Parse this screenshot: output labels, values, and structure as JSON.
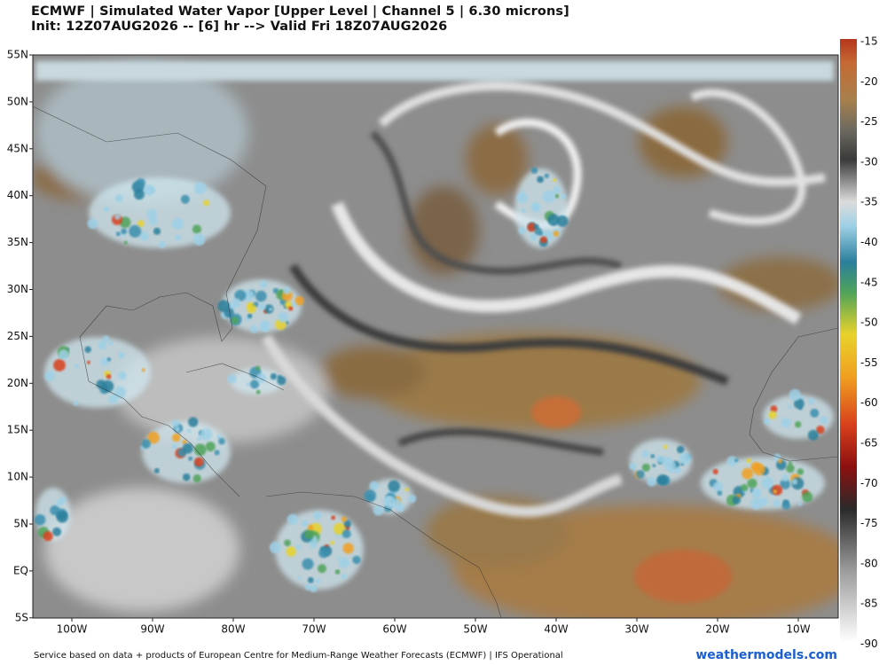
{
  "header": {
    "title": "ECMWF | Simulated Water Vapor [Upper Level | Channel 5 | 6.30 microns]",
    "subtitle": "Init: 12Z07AUG2026 -- [6] hr --> Valid Fri 18Z07AUG2026"
  },
  "map": {
    "latitude_labels": [
      "55N",
      "50N",
      "45N",
      "40N",
      "35N",
      "30N",
      "25N",
      "20N",
      "15N",
      "10N",
      "5N",
      "EQ",
      "5S"
    ],
    "longitude_labels": [
      "100W",
      "90W",
      "80W",
      "70W",
      "60W",
      "50W",
      "40W",
      "30W",
      "20W",
      "10W"
    ]
  },
  "colorbar": {
    "labels": [
      "-15",
      "-20",
      "-25",
      "-30",
      "-35",
      "-40",
      "-45",
      "-50",
      "-55",
      "-60",
      "-65",
      "-70",
      "-75",
      "-80",
      "-85",
      "-90"
    ]
  },
  "footer": {
    "credit": "Service based on data + products of European Centre for Medium-Range Weather Forecasts (ECMWF) | IFS Operational",
    "site": "weathermodels.com"
  }
}
